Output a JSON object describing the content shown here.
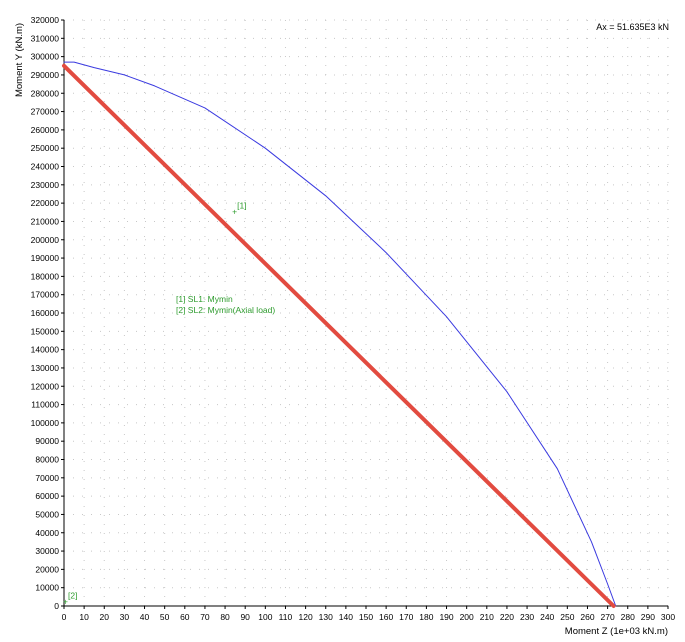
{
  "chart_data": {
    "type": "line",
    "xlabel": "Moment Z (1e+03 kN.m)",
    "ylabel": "Moment Y (kN.m)",
    "xlim": [
      0,
      300
    ],
    "ylim": [
      0,
      320000
    ],
    "x_ticks": [
      "0",
      "10",
      "20",
      "30",
      "40",
      "50",
      "60",
      "70",
      "80",
      "90",
      "100",
      "110",
      "120",
      "130",
      "140",
      "150",
      "160",
      "170",
      "180",
      "190",
      "200",
      "210",
      "220",
      "230",
      "240",
      "250",
      "260",
      "270",
      "280",
      "290",
      "300"
    ],
    "y_ticks": [
      "0",
      "10000",
      "20000",
      "30000",
      "40000",
      "50000",
      "60000",
      "70000",
      "80000",
      "90000",
      "100000",
      "110000",
      "120000",
      "130000",
      "140000",
      "150000",
      "160000",
      "170000",
      "180000",
      "190000",
      "200000",
      "210000",
      "220000",
      "230000",
      "240000",
      "250000",
      "260000",
      "270000",
      "280000",
      "290000",
      "300000",
      "310000",
      "320000"
    ],
    "grid": true,
    "annotation": "Ax = 51.635E3 kN",
    "series": [
      {
        "color": "#3a3ae0",
        "x": [
          0,
          5,
          15,
          30,
          45,
          70,
          100,
          130,
          160,
          190,
          220,
          245,
          262,
          270,
          274
        ],
        "y": [
          297000,
          297000,
          294000,
          290000,
          284000,
          272000,
          250000,
          224000,
          193000,
          158000,
          117000,
          75000,
          35000,
          12000,
          0
        ]
      },
      {
        "color": "#e24b40",
        "x": [
          0,
          273
        ],
        "y": [
          295000,
          0
        ]
      }
    ],
    "points": [
      {
        "label": "[1]",
        "x": 85,
        "y": 216000
      },
      {
        "label": "[2]",
        "x": 1,
        "y": 3000
      }
    ],
    "legend": [
      "[1] SL1: Mymin",
      "[2] SL2: Mymin(Axial load)"
    ]
  }
}
